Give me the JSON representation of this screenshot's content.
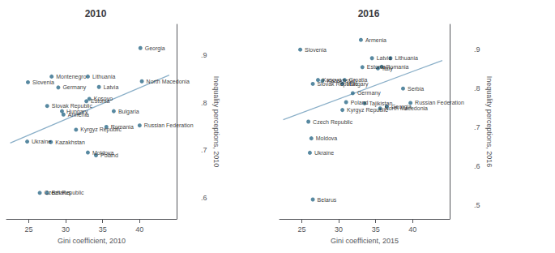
{
  "chart_data": [
    {
      "type": "scatter",
      "title": "2010",
      "xlabel": "Gini coefficient, 2010",
      "ylabel": "Inequality perceptions, 2010",
      "xlim": [
        22,
        45
      ],
      "ylim": [
        0.555,
        0.965
      ],
      "xticks": [
        25,
        30,
        35,
        40
      ],
      "yticks": [
        {
          "value": 0.6,
          "label": ".6"
        },
        {
          "value": 0.7,
          "label": ".7"
        },
        {
          "value": 0.8,
          "label": ".8"
        },
        {
          "value": 0.9,
          "label": ".9"
        }
      ],
      "grid": false,
      "series": [
        {
          "type": "line",
          "color": "#8aafc8",
          "x": [
            22.5,
            44.0
          ],
          "values": [
            0.715,
            0.858
          ]
        },
        {
          "type": "scatter",
          "color": "#2e6b8a",
          "x": [
            40.1,
            28.1,
            33.0,
            40.3,
            24.9,
            29.0,
            34.5,
            33.2,
            32.8,
            27.5,
            29.5,
            36.5,
            29.7,
            40.0,
            31.4,
            35.5,
            24.8,
            28.0,
            33.0,
            34.1,
            26.5,
            27.5
          ],
          "values": [
            0.915,
            0.855,
            0.855,
            0.845,
            0.843,
            0.832,
            0.833,
            0.808,
            0.803,
            0.793,
            0.782,
            0.782,
            0.775,
            0.752,
            0.743,
            0.749,
            0.718,
            0.717,
            0.695,
            0.689,
            0.61,
            0.61
          ],
          "point_labels": [
            "Georgia",
            "Montenegro",
            "Lithuania",
            "North Macedonia",
            "Slovenia",
            "Germany",
            "Latvia",
            "Kosovo",
            "Estonia",
            "Slovak Republic",
            "Hungary",
            "Bulgaria",
            "Armenia",
            "Russian Federation",
            "Kyrgyz Republic",
            "Romania",
            "Ukraine",
            "Kazakhstan",
            "Moldova",
            "Poland",
            "Czech Republic",
            "Belarus"
          ]
        }
      ]
    },
    {
      "type": "scatter",
      "title": "2016",
      "xlabel": "Gini coefficient, 2015",
      "ylabel": "Inequality perceptions, 2016",
      "xlim": [
        22,
        45
      ],
      "ylim": [
        0.465,
        0.965
      ],
      "xticks": [
        25,
        30,
        35,
        40
      ],
      "yticks": [
        {
          "value": 0.5,
          "label": ".5"
        },
        {
          "value": 0.6,
          "label": ".6"
        },
        {
          "value": 0.7,
          "label": ".7"
        },
        {
          "value": 0.8,
          "label": ".8"
        },
        {
          "value": 0.9,
          "label": ".9"
        }
      ],
      "grid": false,
      "series": [
        {
          "type": "line",
          "color": "#8aafc8",
          "x": [
            22.5,
            44.0
          ],
          "values": [
            0.72,
            0.872
          ]
        },
        {
          "type": "scatter",
          "color": "#2e6b8a",
          "x": [
            33.0,
            24.8,
            34.5,
            37.0,
            33.2,
            35.8,
            35.3,
            27.2,
            27.8,
            30.8,
            26.5,
            30.5,
            38.7,
            31.9,
            31.0,
            33.5,
            39.7,
            36.5,
            35.6,
            30.5,
            25.9,
            26.3,
            26.1,
            26.5
          ],
          "values": [
            0.925,
            0.9,
            0.878,
            0.878,
            0.855,
            0.856,
            0.852,
            0.822,
            0.82,
            0.822,
            0.812,
            0.812,
            0.8,
            0.788,
            0.765,
            0.762,
            0.763,
            0.754,
            0.749,
            0.745,
            0.715,
            0.672,
            0.635,
            0.515
          ],
          "point_labels": [
            "Armenia",
            "Slovenia",
            "Latvia",
            "Lithuania",
            "Estonia",
            "Romania",
            "Italy",
            "Kosovo",
            "Kazakhstan",
            "Croatia",
            "Slovak Republic",
            "Hungary",
            "Serbia",
            "Germany",
            "Poland",
            "Tajikistan",
            "Russian Federation",
            "Georgia",
            "North Macedonia",
            "Kyrgyz Republic",
            "Czech Republic",
            "Moldova",
            "Ukraine",
            "Belarus"
          ]
        }
      ]
    }
  ]
}
